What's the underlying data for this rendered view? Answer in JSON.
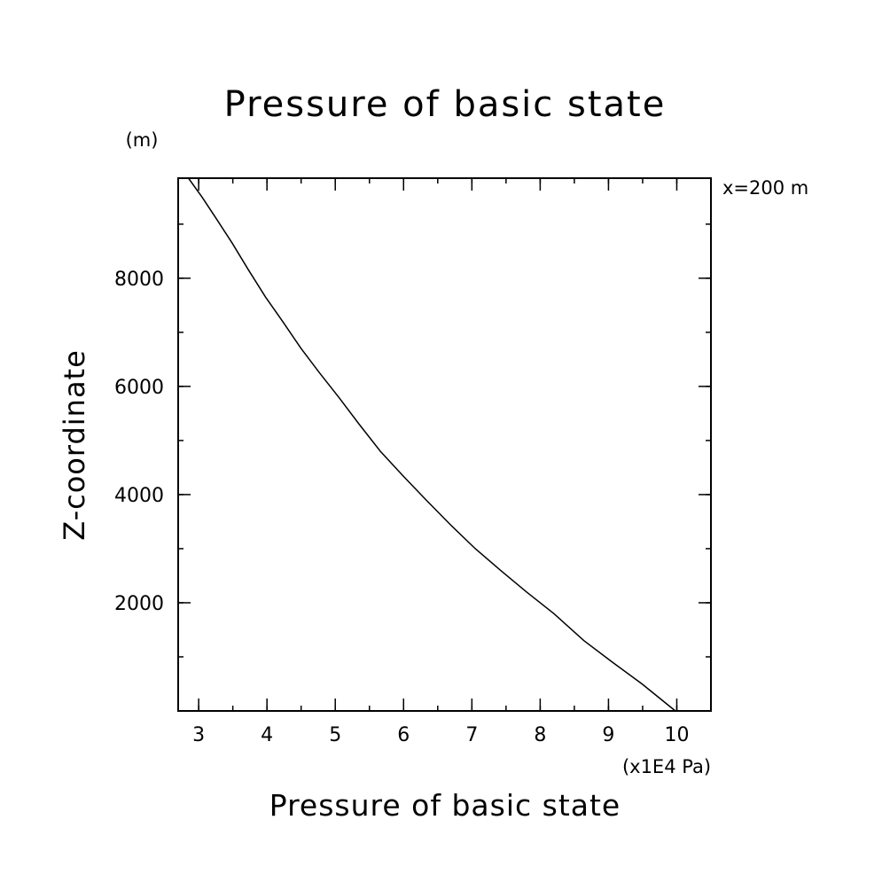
{
  "chart_data": {
    "type": "line",
    "title": "Pressure of basic state",
    "xlabel": "Pressure of basic state",
    "ylabel": "Z-coordinate",
    "y_unit": "(m)",
    "x_multiplier": "(x1E4 Pa)",
    "annotation": "x=200 m",
    "xlim": [
      2.7,
      10.5
    ],
    "ylim": [
      0,
      9850
    ],
    "x_ticks": [
      3,
      4,
      5,
      6,
      7,
      8,
      9,
      10
    ],
    "x_tick_labels": [
      "3",
      "4",
      "5",
      "6",
      "7",
      "8",
      "9",
      "10"
    ],
    "y_ticks": [
      2000,
      4000,
      6000,
      8000
    ],
    "y_tick_labels": [
      "2000",
      "4000",
      "6000",
      "8000"
    ],
    "x_minor_step": 0.5,
    "y_minor_step": 1000,
    "grid": false,
    "series": [
      {
        "x": [
          9.98,
          9.49,
          9.06,
          8.64,
          8.2,
          7.8,
          7.42,
          7.05,
          6.68,
          6.33,
          5.99,
          5.66,
          5.35,
          5.05,
          4.77,
          4.5,
          4.23,
          3.98,
          3.73,
          3.49,
          3.26,
          3.05,
          2.85
        ],
        "y": [
          0,
          500,
          900,
          1300,
          1800,
          2200,
          2600,
          3000,
          3450,
          3900,
          4350,
          4800,
          5300,
          5800,
          6250,
          6700,
          7200,
          7650,
          8150,
          8650,
          9100,
          9500,
          9850
        ]
      }
    ]
  }
}
